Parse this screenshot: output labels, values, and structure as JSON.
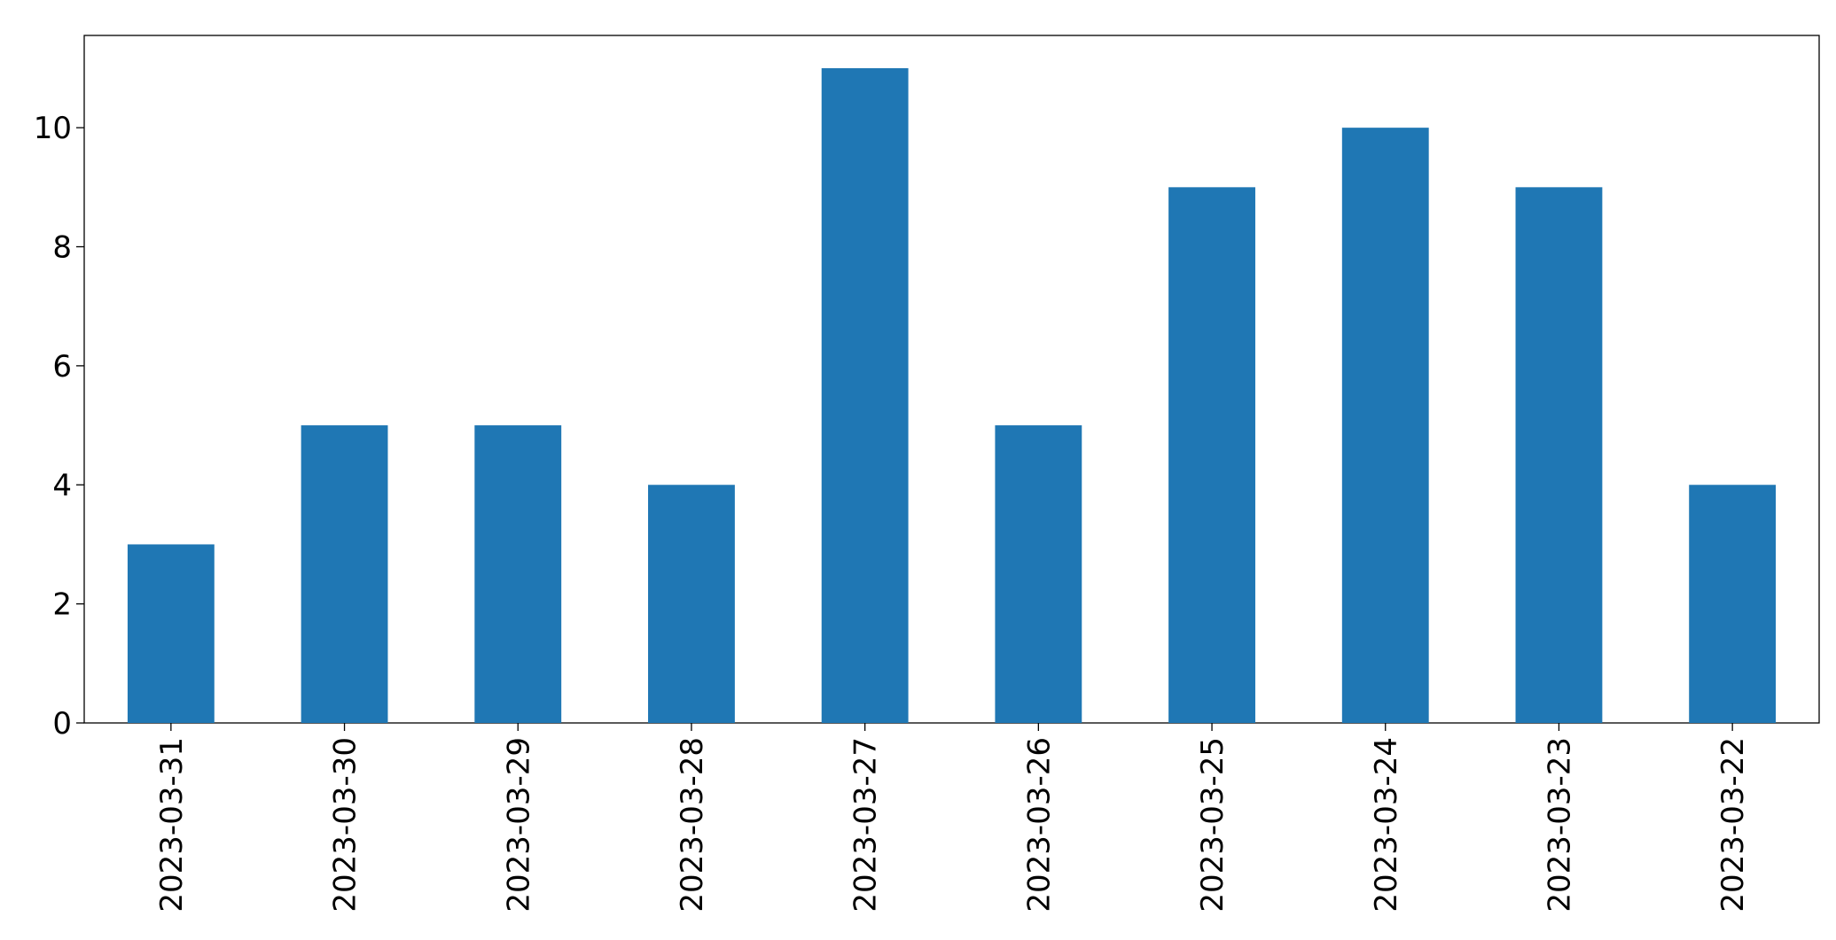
{
  "chart_data": {
    "type": "bar",
    "categories": [
      "2023-03-31",
      "2023-03-30",
      "2023-03-29",
      "2023-03-28",
      "2023-03-27",
      "2023-03-26",
      "2023-03-25",
      "2023-03-24",
      "2023-03-23",
      "2023-03-22"
    ],
    "values": [
      3,
      5,
      5,
      4,
      11,
      5,
      9,
      10,
      9,
      4
    ],
    "color": "#1f77b4",
    "ylim": [
      0,
      11.55
    ],
    "yticks": [
      0,
      2,
      4,
      6,
      8,
      10
    ],
    "grid": false
  }
}
